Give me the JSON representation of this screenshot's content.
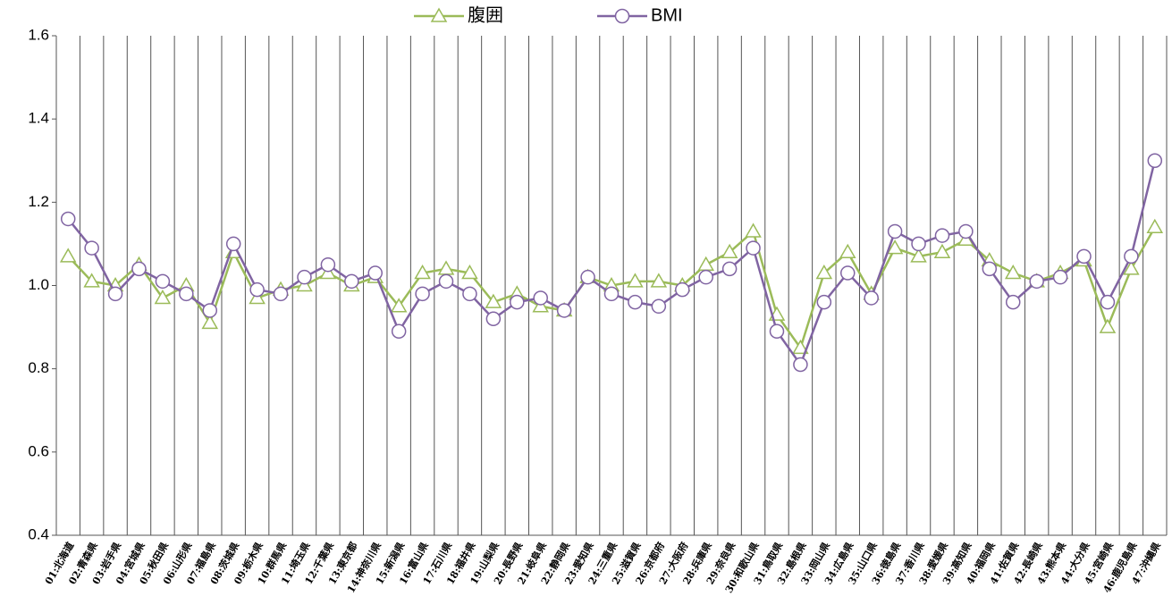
{
  "chart_data": {
    "type": "line",
    "categories": [
      "01:北海道",
      "02:青森県",
      "03:岩手県",
      "04:宮城県",
      "05:秋田県",
      "06:山形県",
      "07:福島県",
      "08:茨城県",
      "09:栃木県",
      "10:群馬県",
      "11:埼玉県",
      "12:千葉県",
      "13:東京都",
      "14:神奈川県",
      "15:新潟県",
      "16:富山県",
      "17:石川県",
      "18:福井県",
      "19:山梨県",
      "20:長野県",
      "21:岐阜県",
      "22:静岡県",
      "23:愛知県",
      "24:三重県",
      "25:滋賀県",
      "26:京都府",
      "27:大阪府",
      "28:兵庫県",
      "29:奈良県",
      "30:和歌山県",
      "31:鳥取県",
      "32:島根県",
      "33:岡山県",
      "34:広島県",
      "35:山口県",
      "36:徳島県",
      "37:香川県",
      "38:愛媛県",
      "39:高知県",
      "40:福岡県",
      "41:佐賀県",
      "42:長崎県",
      "43:熊本県",
      "44:大分県",
      "45:宮崎県",
      "46:鹿児島県",
      "47:沖縄県"
    ],
    "series": [
      {
        "name": "腹囲",
        "color": "#9bbb59",
        "marker": "triangle",
        "values": [
          1.07,
          1.01,
          1.0,
          1.05,
          0.97,
          1.0,
          0.91,
          1.08,
          0.97,
          0.99,
          1.0,
          1.03,
          1.0,
          1.02,
          0.95,
          1.03,
          1.04,
          1.03,
          0.96,
          0.98,
          0.95,
          0.94,
          1.02,
          1.0,
          1.01,
          1.01,
          1.0,
          1.05,
          1.08,
          1.13,
          0.93,
          0.85,
          1.03,
          1.08,
          0.98,
          1.09,
          1.07,
          1.08,
          1.11,
          1.06,
          1.03,
          1.01,
          1.03,
          1.06,
          0.9,
          1.04,
          1.14
        ]
      },
      {
        "name": "BMI",
        "color": "#8064a2",
        "marker": "circle",
        "values": [
          1.16,
          1.09,
          0.98,
          1.04,
          1.01,
          0.98,
          0.94,
          1.1,
          0.99,
          0.98,
          1.02,
          1.05,
          1.01,
          1.03,
          0.89,
          0.98,
          1.01,
          0.98,
          0.92,
          0.96,
          0.97,
          0.94,
          1.02,
          0.98,
          0.96,
          0.95,
          0.99,
          1.02,
          1.04,
          1.09,
          0.89,
          0.81,
          0.96,
          1.03,
          0.97,
          1.13,
          1.1,
          1.12,
          1.13,
          1.04,
          0.96,
          1.01,
          1.02,
          1.07,
          0.96,
          1.07,
          1.3
        ]
      }
    ],
    "ylim": [
      0.4,
      1.6
    ],
    "yticks": [
      0.4,
      0.6,
      0.8,
      {
        "value": 1.0,
        "label": "1.0"
      },
      1.2,
      1.4,
      1.6
    ],
    "grid": "vertical",
    "legend": "top"
  }
}
